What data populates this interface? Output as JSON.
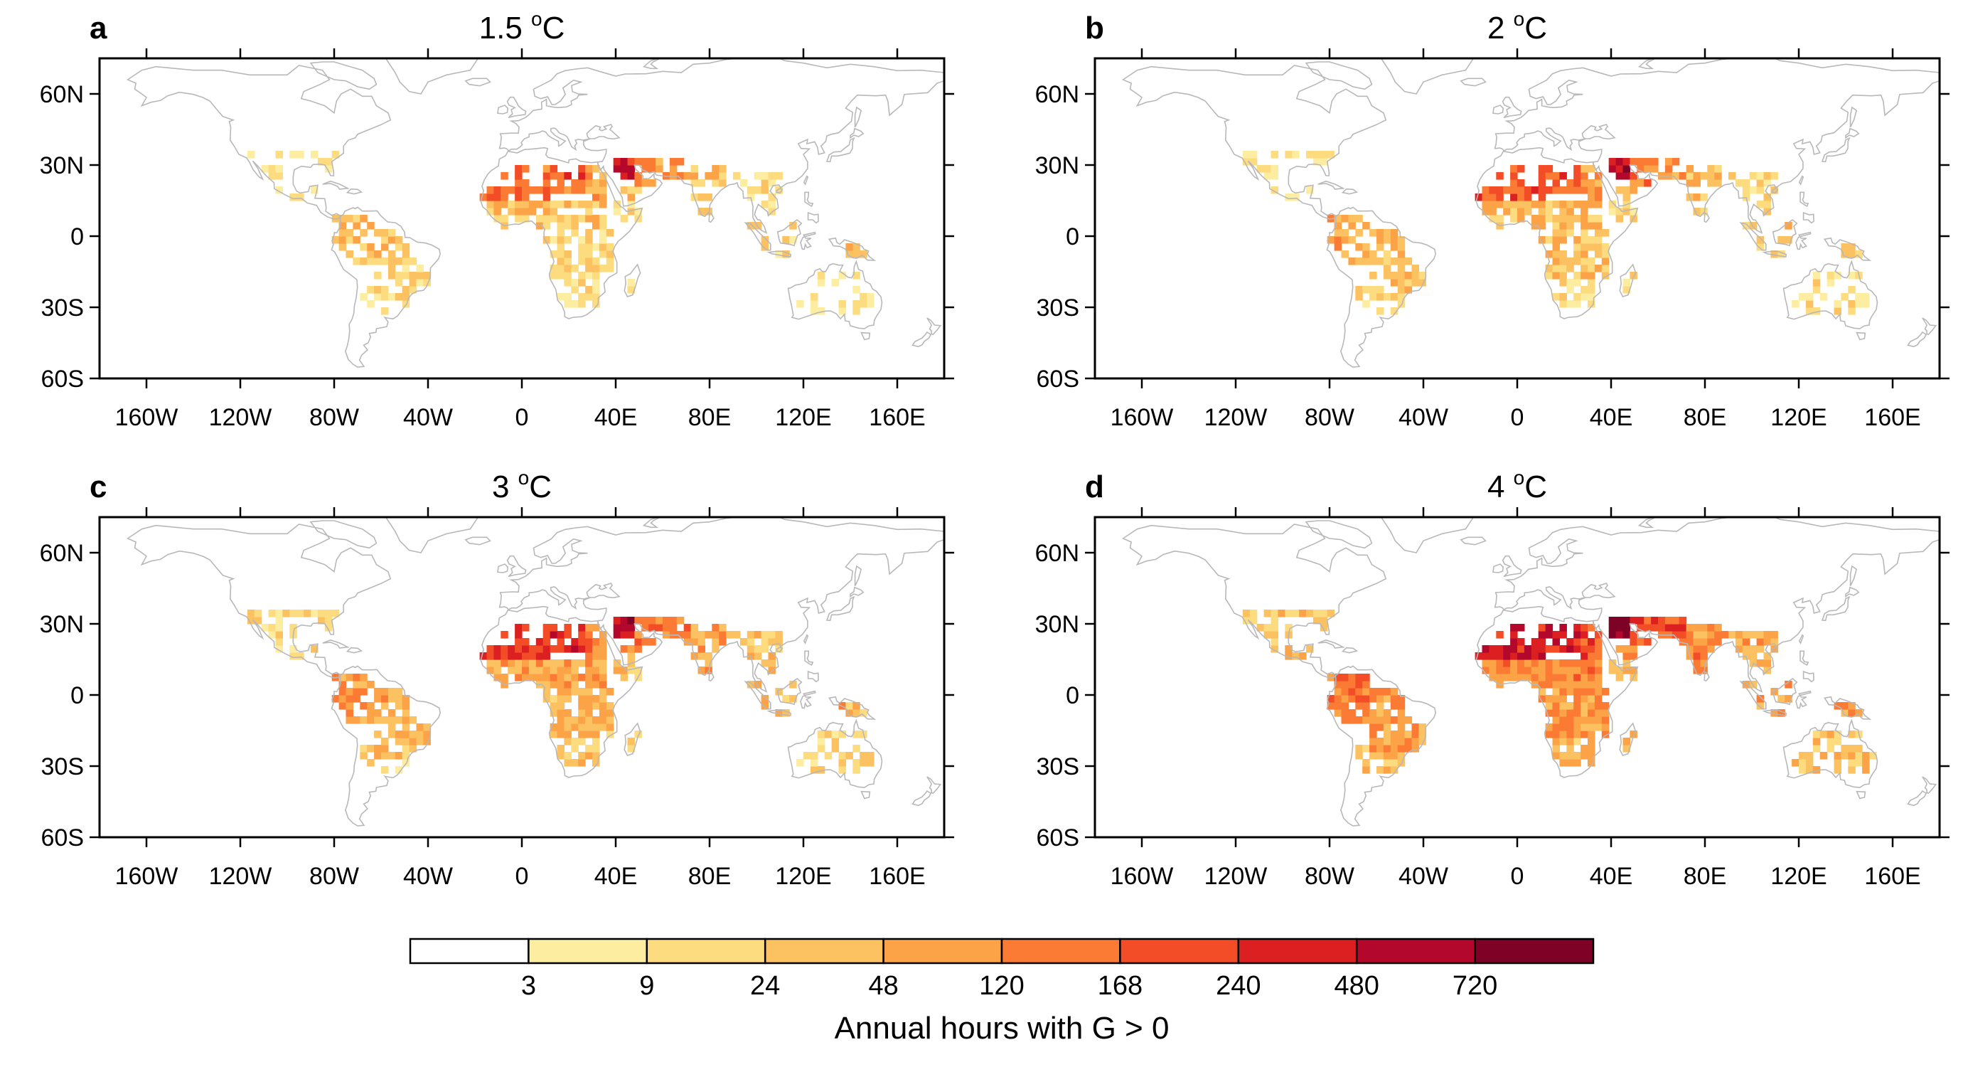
{
  "figure": {
    "panels": [
      {
        "letter": "a",
        "title_main": "1.5 ",
        "title_sup": "o",
        "title_unit": "C",
        "intensity": 0.0
      },
      {
        "letter": "b",
        "title_main": "2 ",
        "title_sup": "o",
        "title_unit": "C",
        "intensity": 0.15
      },
      {
        "letter": "c",
        "title_main": "3 ",
        "title_sup": "o",
        "title_unit": "C",
        "intensity": 0.45
      },
      {
        "letter": "d",
        "title_main": "4 ",
        "title_sup": "o",
        "title_unit": "C",
        "intensity": 0.8
      }
    ],
    "lat_ticks": [
      "60N",
      "30N",
      "0",
      "30S",
      "60S"
    ],
    "lat_values": [
      60,
      30,
      0,
      -30,
      -60
    ],
    "lon_ticks": [
      "160W",
      "120W",
      "80W",
      "40W",
      "0",
      "40E",
      "80E",
      "120E",
      "160E"
    ],
    "lon_values": [
      -160,
      -120,
      -80,
      -40,
      0,
      40,
      80,
      120,
      160
    ],
    "extent": {
      "lon": [
        -180,
        180
      ],
      "lat": [
        -60,
        75
      ]
    },
    "colorbar": {
      "boundaries": [
        "3",
        "9",
        "24",
        "48",
        "120",
        "168",
        "240",
        "480",
        "720"
      ],
      "colors": [
        "#ffffff",
        "#fdeda0",
        "#fddb7f",
        "#fcc160",
        "#fca347",
        "#fb7b34",
        "#f24d27",
        "#dc2022",
        "#b3072b",
        "#7e0126"
      ],
      "title": "Annual hours with G > 0"
    },
    "coastline_color": "#b8b8b8"
  }
}
